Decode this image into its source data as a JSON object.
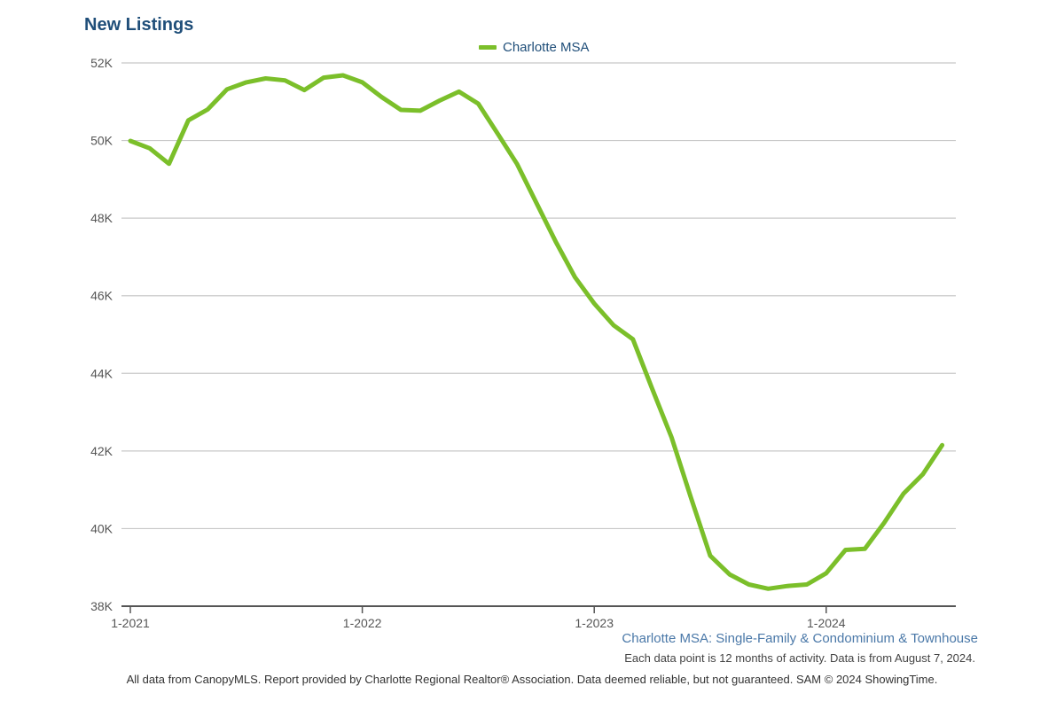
{
  "title": "New Listings",
  "legend_label": "Charlotte MSA",
  "subtitle": "Charlotte MSA: Single-Family & Condominium & Townhouse",
  "note": "Each data point is 12 months of activity. Data is from August 7, 2024.",
  "footer": "All data from CanopyMLS. Report provided by Charlotte Regional Realtor® Association. Data deemed reliable, but not guaranteed. SAM © 2024 ShowingTime.",
  "colors": {
    "series": "#7bbf2a",
    "title": "#1f4e79",
    "grid": "#c8c8c8",
    "axis": "#555555"
  },
  "chart_data": {
    "type": "line",
    "title": "New Listings",
    "xlabel": "",
    "ylabel": "",
    "x_ticks": [
      "1-2021",
      "1-2022",
      "1-2023",
      "1-2024"
    ],
    "y_ticks": [
      "38K",
      "40K",
      "42K",
      "44K",
      "46K",
      "48K",
      "50K",
      "52K"
    ],
    "ylim": [
      38000,
      52000
    ],
    "xlim": [
      "2021-01",
      "2024-07"
    ],
    "grid": true,
    "legend_position": "top-center",
    "series": [
      {
        "name": "Charlotte MSA",
        "x": [
          "2021-01",
          "2021-02",
          "2021-03",
          "2021-04",
          "2021-05",
          "2021-06",
          "2021-07",
          "2021-08",
          "2021-09",
          "2021-10",
          "2021-11",
          "2021-12",
          "2022-01",
          "2022-02",
          "2022-03",
          "2022-04",
          "2022-05",
          "2022-06",
          "2022-07",
          "2022-08",
          "2022-09",
          "2022-10",
          "2022-11",
          "2022-12",
          "2023-01",
          "2023-02",
          "2023-03",
          "2023-04",
          "2023-05",
          "2023-06",
          "2023-07",
          "2023-08",
          "2023-09",
          "2023-10",
          "2023-11",
          "2023-12",
          "2024-01",
          "2024-02",
          "2024-03",
          "2024-04",
          "2024-05",
          "2024-06",
          "2024-07"
        ],
        "values": [
          49990,
          49800,
          49400,
          50520,
          50800,
          51320,
          51500,
          51600,
          51550,
          51300,
          51620,
          51680,
          51500,
          51120,
          50790,
          50770,
          51030,
          51260,
          50950,
          50180,
          49400,
          48400,
          47400,
          46480,
          45800,
          45240,
          44880,
          43600,
          42350,
          40800,
          39300,
          38820,
          38560,
          38450,
          38520,
          38560,
          38850,
          39450,
          39480,
          40150,
          40900,
          41400,
          42150
        ]
      }
    ]
  }
}
